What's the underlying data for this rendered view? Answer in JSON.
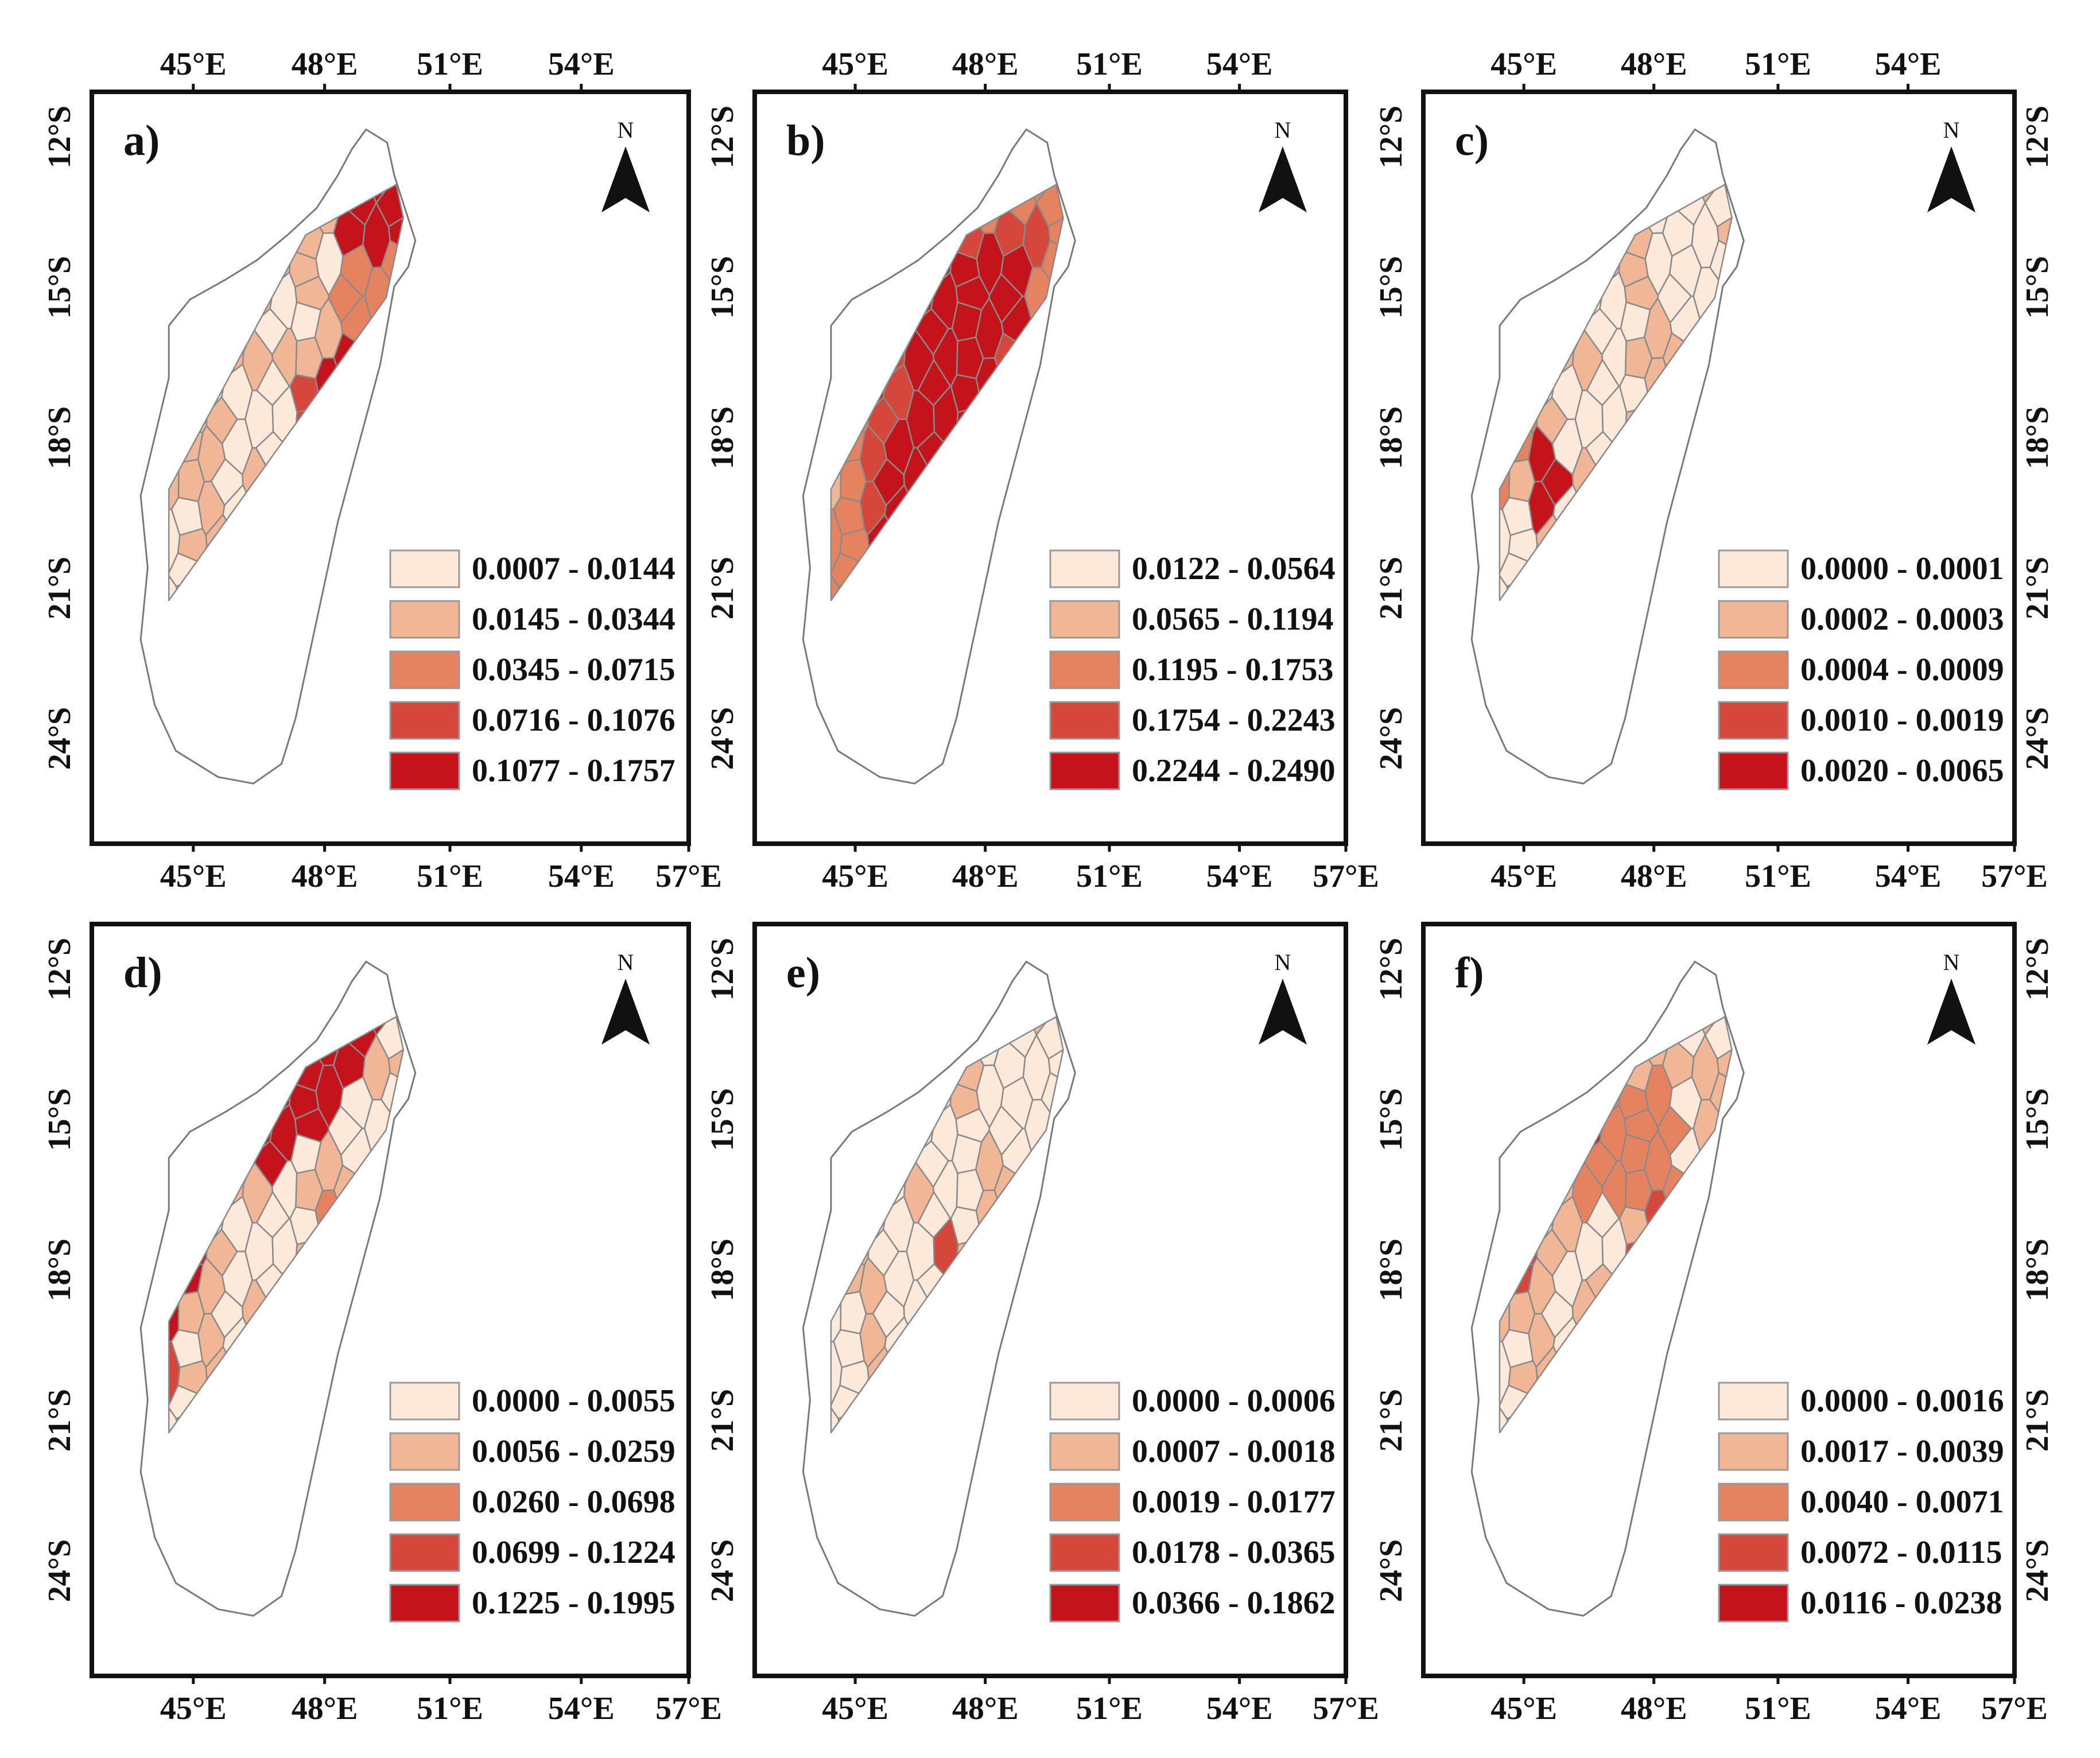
{
  "colors": {
    "class1": "#fde9da",
    "class2": "#f1b695",
    "class3": "#e5825f",
    "class4": "#d4473a",
    "class5": "#c4131a"
  },
  "panels": [
    {
      "label": "a)",
      "legend": [
        "0.0007 - 0.0144",
        "0.0145 - 0.0344",
        "0.0345 - 0.0715",
        "0.0716 - 0.1076",
        "0.1077 - 0.1757"
      ],
      "lon_ticks_top": [
        "45°E",
        "48°E",
        "51°E",
        "54°E"
      ],
      "lon_ticks_bottom": [
        "45°E",
        "48°E",
        "51°E",
        "54°E",
        "57°E"
      ],
      "lat_ticks": [
        "12°S",
        "15°S",
        "18°S",
        "21°S",
        "24°S"
      ],
      "north": "N"
    },
    {
      "label": "b)",
      "legend": [
        "0.0122 - 0.0564",
        "0.0565 - 0.1194",
        "0.1195 - 0.1753",
        "0.1754 - 0.2243",
        "0.2244 - 0.2490"
      ],
      "lon_ticks_top": [
        "45°E",
        "48°E",
        "51°E",
        "54°E"
      ],
      "lon_ticks_bottom": [
        "45°E",
        "48°E",
        "51°E",
        "54°E",
        "57°E"
      ],
      "lat_ticks": [
        "12°S",
        "15°S",
        "18°S",
        "21°S",
        "24°S"
      ],
      "north": "N"
    },
    {
      "label": "c)",
      "legend": [
        "0.0000 - 0.0001",
        "0.0002 - 0.0003",
        "0.0004 - 0.0009",
        "0.0010 - 0.0019",
        "0.0020 - 0.0065"
      ],
      "lon_ticks_top": [
        "45°E",
        "48°E",
        "51°E",
        "54°E"
      ],
      "lon_ticks_bottom": [
        "45°E",
        "48°E",
        "51°E",
        "54°E",
        "57°E"
      ],
      "lat_ticks": [
        "12°S",
        "15°S",
        "18°S",
        "21°S",
        "24°S"
      ],
      "north": "N"
    },
    {
      "label": "d)",
      "legend": [
        "0.0000 - 0.0055",
        "0.0056 - 0.0259",
        "0.0260 - 0.0698",
        "0.0699 - 0.1224",
        "0.1225 - 0.1995"
      ],
      "lon_ticks_top": [],
      "lon_ticks_bottom": [
        "45°E",
        "48°E",
        "51°E",
        "54°E",
        "57°E"
      ],
      "lat_ticks": [
        "12°S",
        "15°S",
        "18°S",
        "21°S",
        "24°S"
      ],
      "north": "N"
    },
    {
      "label": "e)",
      "legend": [
        "0.0000 - 0.0006",
        "0.0007 - 0.0018",
        "0.0019 - 0.0177",
        "0.0178 - 0.0365",
        "0.0366 - 0.1862"
      ],
      "lon_ticks_top": [],
      "lon_ticks_bottom": [
        "45°E",
        "48°E",
        "51°E",
        "54°E",
        "57°E"
      ],
      "lat_ticks": [
        "12°S",
        "15°S",
        "18°S",
        "21°S",
        "24°S"
      ],
      "north": "N"
    },
    {
      "label": "f)",
      "legend": [
        "0.0000 - 0.0016",
        "0.0017 - 0.0039",
        "0.0040 - 0.0071",
        "0.0072 - 0.0115",
        "0.0116 - 0.0238"
      ],
      "lon_ticks_top": [],
      "lon_ticks_bottom": [
        "45°E",
        "48°E",
        "51°E",
        "54°E",
        "57°E"
      ],
      "lat_ticks": [
        "12°S",
        "15°S",
        "18°S",
        "21°S",
        "24°S"
      ],
      "north": "N"
    }
  ]
}
